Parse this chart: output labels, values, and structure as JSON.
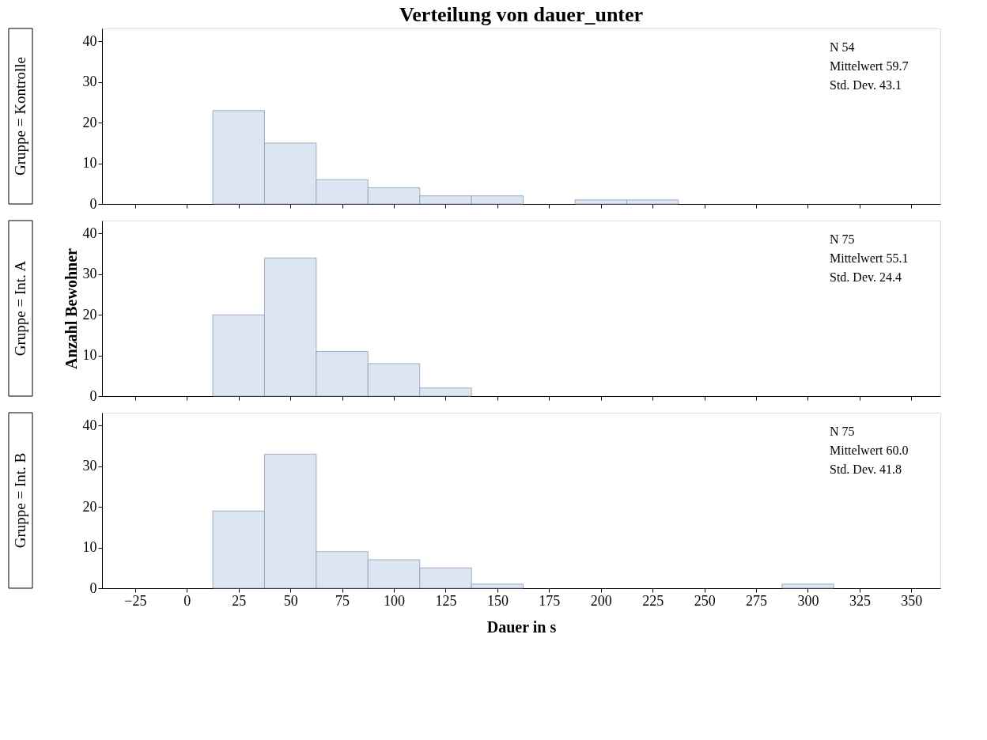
{
  "chart_data": [
    {
      "type": "histogram",
      "title": "Verteilung von dauer_unter",
      "subtitle": "Gruppe = Kontrolle",
      "bins": [
        12.5,
        37.5,
        62.5,
        87.5,
        112.5,
        137.5,
        162.5,
        187.5,
        212.5,
        237.5
      ],
      "values": [
        23,
        15,
        6,
        4,
        2,
        2,
        0,
        1,
        1
      ],
      "color": "#dce6f2",
      "xlim": [
        -41,
        364
      ],
      "ylim": [
        0,
        43.2
      ],
      "xticks": [
        -25,
        0,
        25,
        50,
        75,
        100,
        125,
        150,
        175,
        200,
        225,
        250,
        275,
        300,
        325,
        350
      ],
      "yticks": [
        0,
        10,
        20,
        30,
        40
      ],
      "tick_labels": "y",
      "grid": false,
      "annotations": [
        "N 54",
        "Mittelwert 59.7",
        "Std. Dev. 43.1"
      ]
    },
    {
      "type": "histogram",
      "subtitle": "Gruppe = Int. A",
      "ylabel": "Anzahl Bewohner",
      "bins": [
        12.5,
        37.5,
        62.5,
        87.5,
        112.5,
        137.5
      ],
      "values": [
        20,
        34,
        11,
        8,
        2
      ],
      "color": "#dce6f2",
      "xlim": [
        -41,
        364
      ],
      "ylim": [
        0,
        43.2
      ],
      "xticks": [
        -25,
        0,
        25,
        50,
        75,
        100,
        125,
        150,
        175,
        200,
        225,
        250,
        275,
        300,
        325,
        350
      ],
      "yticks": [
        0,
        10,
        20,
        30,
        40
      ],
      "tick_labels": "y",
      "grid": false,
      "annotations": [
        "N 75",
        "Mittelwert 55.1",
        "Std. Dev. 24.4"
      ]
    },
    {
      "type": "histogram",
      "subtitle": "Gruppe = Int. B",
      "xlabel": "Dauer in s",
      "bins": [
        12.5,
        37.5,
        62.5,
        87.5,
        112.5,
        137.5,
        162.5,
        187.5,
        212.5,
        237.5,
        262.5,
        287.5,
        312.5
      ],
      "values": [
        19,
        33,
        9,
        7,
        5,
        1,
        0,
        0,
        0,
        0,
        0,
        1
      ],
      "color": "#dce6f2",
      "xlim": [
        -41,
        364
      ],
      "ylim": [
        0,
        43.2
      ],
      "xticks": [
        -25,
        0,
        25,
        50,
        75,
        100,
        125,
        150,
        175,
        200,
        225,
        250,
        275,
        300,
        325,
        350
      ],
      "yticks": [
        0,
        10,
        20,
        30,
        40
      ],
      "grid": false,
      "annotations": [
        "N 75",
        "Mittelwert 60.0",
        "Std. Dev. 41.8"
      ]
    }
  ]
}
